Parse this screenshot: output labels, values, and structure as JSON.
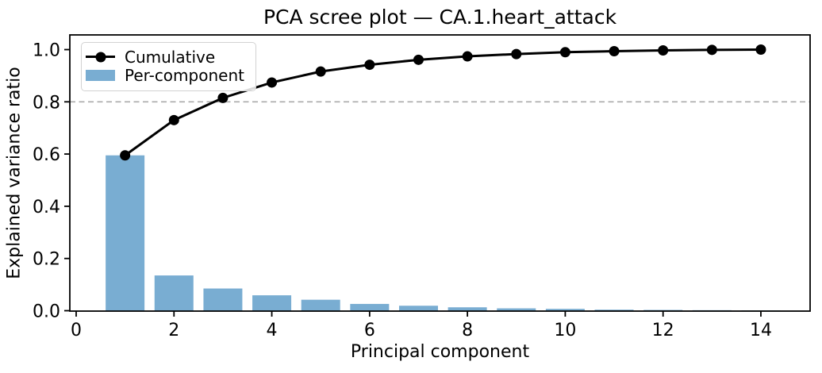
{
  "chart_data": {
    "type": "bar+line",
    "title": "PCA scree plot — CA.1.heart_attack",
    "xlabel": "Principal component",
    "ylabel": "Explained variance ratio",
    "x": [
      1,
      2,
      3,
      4,
      5,
      6,
      7,
      8,
      9,
      10,
      11,
      12,
      13,
      14
    ],
    "series": [
      {
        "name": "Cumulative",
        "type": "line",
        "color": "#000000",
        "marker": "circle",
        "values": [
          0.595,
          0.73,
          0.815,
          0.874,
          0.916,
          0.942,
          0.961,
          0.974,
          0.983,
          0.99,
          0.994,
          0.997,
          0.999,
          1.0
        ]
      },
      {
        "name": "Per-component",
        "type": "bar",
        "color": "#79add2",
        "values": [
          0.595,
          0.135,
          0.085,
          0.059,
          0.042,
          0.026,
          0.019,
          0.013,
          0.009,
          0.007,
          0.004,
          0.003,
          0.002,
          0.001
        ]
      }
    ],
    "threshold_line": {
      "y": 0.8,
      "style": "dashed",
      "color": "#aaaaaa"
    },
    "xticks": [
      0,
      2,
      4,
      6,
      8,
      10,
      12,
      14
    ],
    "yticks": [
      0.0,
      0.2,
      0.4,
      0.6,
      0.8,
      1.0
    ],
    "xlim": [
      -0.13,
      15.0
    ],
    "ylim": [
      0,
      1.055
    ],
    "grid": false,
    "legend_position": "upper left",
    "legend": [
      "Cumulative",
      "Per-component"
    ]
  }
}
